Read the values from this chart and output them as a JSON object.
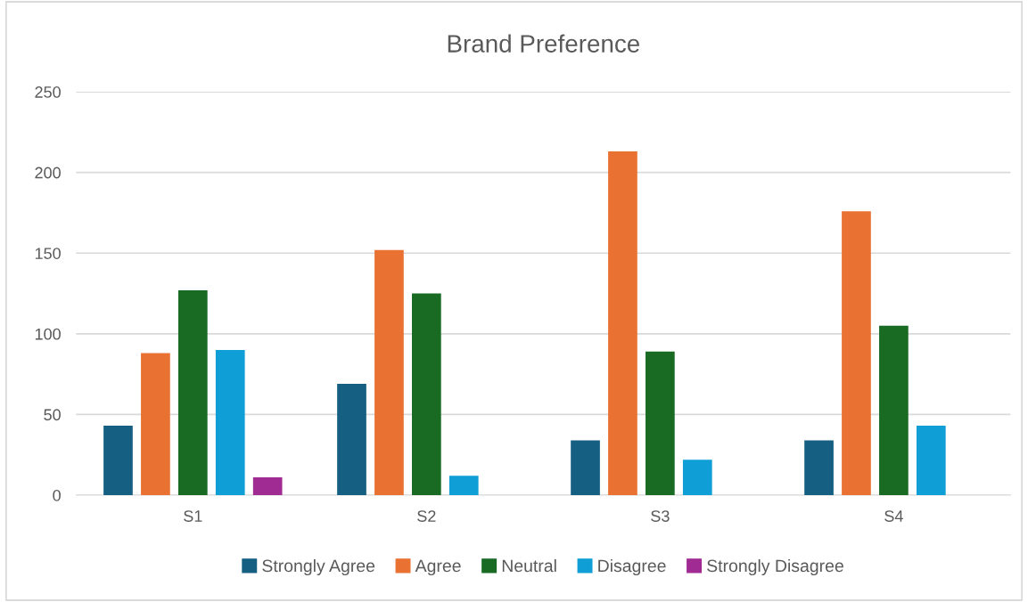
{
  "chart_data": {
    "type": "bar",
    "title": "Brand Preference",
    "categories": [
      "S1",
      "S2",
      "S3",
      "S4"
    ],
    "series": [
      {
        "name": "Strongly Agree",
        "color": "#156082",
        "values": [
          43,
          69,
          34,
          34
        ]
      },
      {
        "name": "Agree",
        "color": "#e97132",
        "values": [
          88,
          152,
          213,
          176
        ]
      },
      {
        "name": "Neutral",
        "color": "#196b24",
        "values": [
          127,
          125,
          89,
          105
        ]
      },
      {
        "name": "Disagree",
        "color": "#0f9ed5",
        "values": [
          90,
          12,
          22,
          43
        ]
      },
      {
        "name": "Strongly Disagree",
        "color": "#a02b93",
        "values": [
          11,
          0,
          0,
          0
        ]
      }
    ],
    "ylim": [
      0,
      250
    ],
    "yticks": [
      0,
      50,
      100,
      150,
      200,
      250
    ],
    "grid": "y",
    "legend": "bottom"
  }
}
